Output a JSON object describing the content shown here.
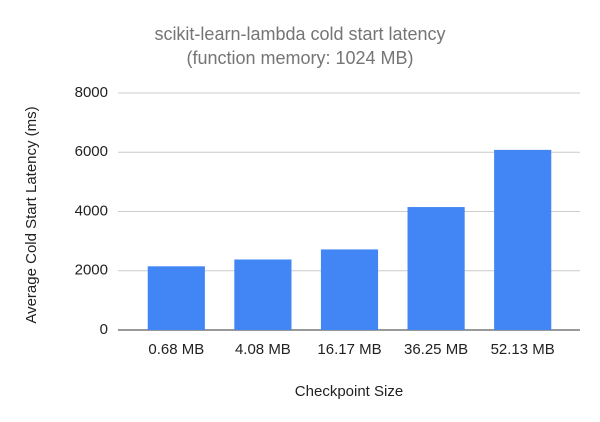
{
  "chart_data": {
    "type": "bar",
    "title": "scikit-learn-lambda cold start latency",
    "subtitle": "(function memory: 1024 MB)",
    "x_label": "Checkpoint Size",
    "y_label": "Average Cold Start Latency (ms)",
    "categories": [
      "0.68 MB",
      "4.08 MB",
      "16.17 MB",
      "36.25 MB",
      "52.13 MB"
    ],
    "values": [
      2150,
      2380,
      2720,
      4150,
      6080
    ],
    "color": "#4285f4",
    "ylim": [
      0,
      8000
    ],
    "yticks": [
      0,
      2000,
      4000,
      6000,
      8000
    ],
    "grid": true
  }
}
